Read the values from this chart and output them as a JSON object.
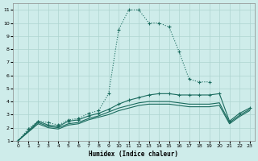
{
  "xlabel": "Humidex (Indice chaleur)",
  "bg_color": "#ceecea",
  "grid_color": "#aed4d0",
  "line_color": "#1a6b5e",
  "xlim": [
    -0.5,
    23.5
  ],
  "ylim": [
    1,
    11.5
  ],
  "xticks": [
    0,
    1,
    2,
    3,
    4,
    5,
    6,
    7,
    8,
    9,
    10,
    11,
    12,
    13,
    14,
    15,
    16,
    17,
    18,
    19,
    20,
    21,
    22,
    23
  ],
  "yticks": [
    1,
    2,
    3,
    4,
    5,
    6,
    7,
    8,
    9,
    10,
    11
  ],
  "line1": {
    "x": [
      0,
      1,
      2,
      3,
      4,
      5,
      6,
      7,
      8,
      9,
      10,
      11,
      12,
      13,
      14,
      15,
      16,
      17,
      18,
      19
    ],
    "y": [
      1.0,
      1.9,
      2.5,
      2.4,
      2.2,
      2.6,
      2.7,
      3.1,
      3.3,
      4.6,
      9.5,
      11.0,
      11.0,
      10.0,
      10.0,
      9.7,
      7.8,
      5.7,
      5.5,
      5.5
    ],
    "dotted": true,
    "markers": true
  },
  "line2": {
    "x": [
      0,
      2,
      3,
      4,
      5,
      6,
      7,
      8,
      9,
      10,
      11,
      12,
      13,
      14,
      15,
      16,
      17,
      18,
      19,
      20,
      21,
      22,
      23
    ],
    "y": [
      1.0,
      2.5,
      2.2,
      2.1,
      2.5,
      2.6,
      2.9,
      3.1,
      3.4,
      3.8,
      4.1,
      4.3,
      4.5,
      4.6,
      4.6,
      4.5,
      4.5,
      4.5,
      4.5,
      4.6,
      2.5,
      3.1,
      3.5
    ],
    "dotted": false,
    "markers": true
  },
  "line3": {
    "x": [
      0,
      2,
      3,
      4,
      5,
      6,
      7,
      8,
      9,
      10,
      11,
      12,
      13,
      14,
      15,
      16,
      17,
      18,
      19,
      20,
      21,
      22,
      23
    ],
    "y": [
      1.0,
      2.4,
      2.1,
      2.0,
      2.3,
      2.4,
      2.7,
      2.9,
      3.2,
      3.5,
      3.7,
      3.9,
      4.0,
      4.0,
      4.0,
      3.9,
      3.8,
      3.8,
      3.8,
      3.9,
      2.4,
      2.95,
      3.4
    ],
    "dotted": false,
    "markers": false
  },
  "line4": {
    "x": [
      0,
      2,
      3,
      4,
      5,
      6,
      7,
      8,
      9,
      10,
      11,
      12,
      13,
      14,
      15,
      16,
      17,
      18,
      19,
      20,
      21,
      22,
      23
    ],
    "y": [
      1.0,
      2.3,
      2.0,
      1.9,
      2.2,
      2.3,
      2.6,
      2.8,
      3.0,
      3.3,
      3.5,
      3.7,
      3.8,
      3.8,
      3.8,
      3.7,
      3.6,
      3.6,
      3.6,
      3.7,
      2.3,
      2.85,
      3.3
    ],
    "dotted": false,
    "markers": false
  }
}
